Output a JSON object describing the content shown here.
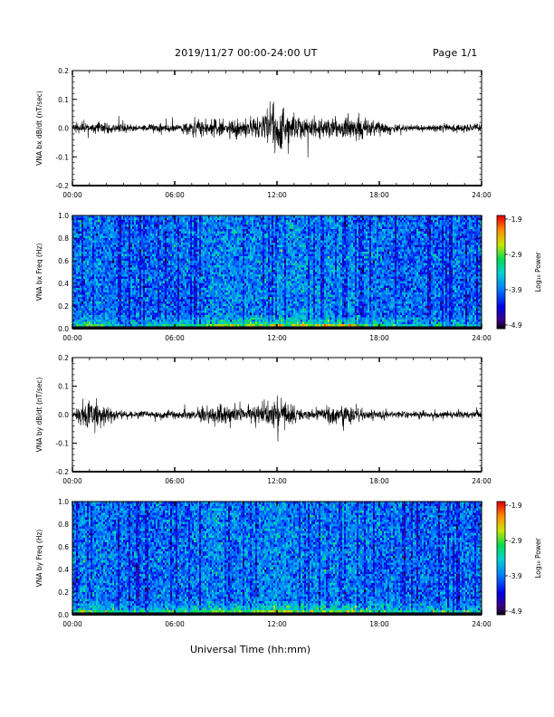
{
  "header": {
    "title": "2019/11/27  00:00-24:00 UT",
    "page": "Page 1/1"
  },
  "xaxis_label": "Universal Time (hh:mm)",
  "chart_data": [
    {
      "type": "line",
      "ylabel": "VNA bx dB/dt (nT/sec)",
      "ylim": [
        -0.2,
        0.2
      ],
      "yticks": [
        "0.2",
        "0.1",
        "0.0",
        "-0.1",
        "-0.2"
      ],
      "xticks": [
        "00:00",
        "06:00",
        "12:00",
        "18:00",
        "24:00"
      ],
      "xlim_hours": [
        0,
        24
      ],
      "series_envelope": {
        "hours": [
          0,
          1,
          2,
          3,
          4,
          5,
          6,
          7,
          8,
          9,
          10,
          11,
          12,
          13,
          14,
          15,
          16,
          17,
          18,
          19,
          20,
          21,
          22,
          23,
          24
        ],
        "amplitude": [
          0.015,
          0.03,
          0.025,
          0.02,
          0.015,
          0.02,
          0.015,
          0.03,
          0.045,
          0.045,
          0.04,
          0.05,
          0.1,
          0.05,
          0.045,
          0.045,
          0.05,
          0.045,
          0.025,
          0.02,
          0.015,
          0.015,
          0.02,
          0.02,
          0.02
        ]
      },
      "grid": false
    },
    {
      "type": "heatmap",
      "ylabel": "VNA bx Freq (Hz)",
      "ylim": [
        0.0,
        1.0
      ],
      "yticks": [
        "1.0",
        "0.8",
        "0.6",
        "0.4",
        "0.2",
        "0.0"
      ],
      "xticks": [
        "00:00",
        "06:00",
        "12:00",
        "18:00",
        "24:00"
      ],
      "colorbar": {
        "label": "Log₁₀ Power",
        "ticks": [
          "-1.9",
          "-2.9",
          "-3.9",
          "-4.9"
        ],
        "range": [
          -4.9,
          -1.9
        ]
      },
      "activity_by_hour": [
        0.4,
        0.7,
        0.5,
        0.4,
        0.35,
        0.45,
        0.4,
        0.55,
        0.7,
        0.75,
        0.7,
        0.75,
        0.85,
        0.8,
        0.75,
        0.8,
        0.85,
        0.7,
        0.5,
        0.4,
        0.35,
        0.35,
        0.4,
        0.4,
        0.4
      ]
    },
    {
      "type": "line",
      "ylabel": "VNA by dB/dt (nT/sec)",
      "ylim": [
        -0.2,
        0.2
      ],
      "yticks": [
        "0.2",
        "0.1",
        "0.0",
        "-0.1",
        "-0.2"
      ],
      "xticks": [
        "00:00",
        "06:00",
        "12:00",
        "18:00",
        "24:00"
      ],
      "xlim_hours": [
        0,
        24
      ],
      "series_envelope": {
        "hours": [
          0,
          1,
          2,
          3,
          4,
          5,
          6,
          7,
          8,
          9,
          10,
          11,
          12,
          13,
          14,
          15,
          16,
          17,
          18,
          19,
          20,
          21,
          22,
          23,
          24
        ],
        "amplitude": [
          0.015,
          0.07,
          0.03,
          0.02,
          0.015,
          0.015,
          0.015,
          0.02,
          0.04,
          0.045,
          0.03,
          0.045,
          0.07,
          0.04,
          0.02,
          0.035,
          0.05,
          0.025,
          0.02,
          0.015,
          0.015,
          0.015,
          0.015,
          0.015,
          0.015
        ]
      },
      "grid": false
    },
    {
      "type": "heatmap",
      "ylabel": "VNA by Freq (Hz)",
      "ylim": [
        0.0,
        1.0
      ],
      "yticks": [
        "1.0",
        "0.8",
        "0.6",
        "0.4",
        "0.2",
        "0.0"
      ],
      "xticks": [
        "00:00",
        "06:00",
        "12:00",
        "18:00",
        "24:00"
      ],
      "colorbar": {
        "label": "Log₁₀ Power",
        "ticks": [
          "-1.9",
          "-2.9",
          "-3.9",
          "-4.9"
        ],
        "range": [
          -4.9,
          -1.9
        ]
      },
      "activity_by_hour": [
        0.45,
        0.75,
        0.55,
        0.45,
        0.4,
        0.45,
        0.45,
        0.55,
        0.7,
        0.7,
        0.65,
        0.7,
        0.8,
        0.75,
        0.7,
        0.75,
        0.8,
        0.65,
        0.5,
        0.45,
        0.4,
        0.4,
        0.45,
        0.45,
        0.45
      ]
    }
  ]
}
